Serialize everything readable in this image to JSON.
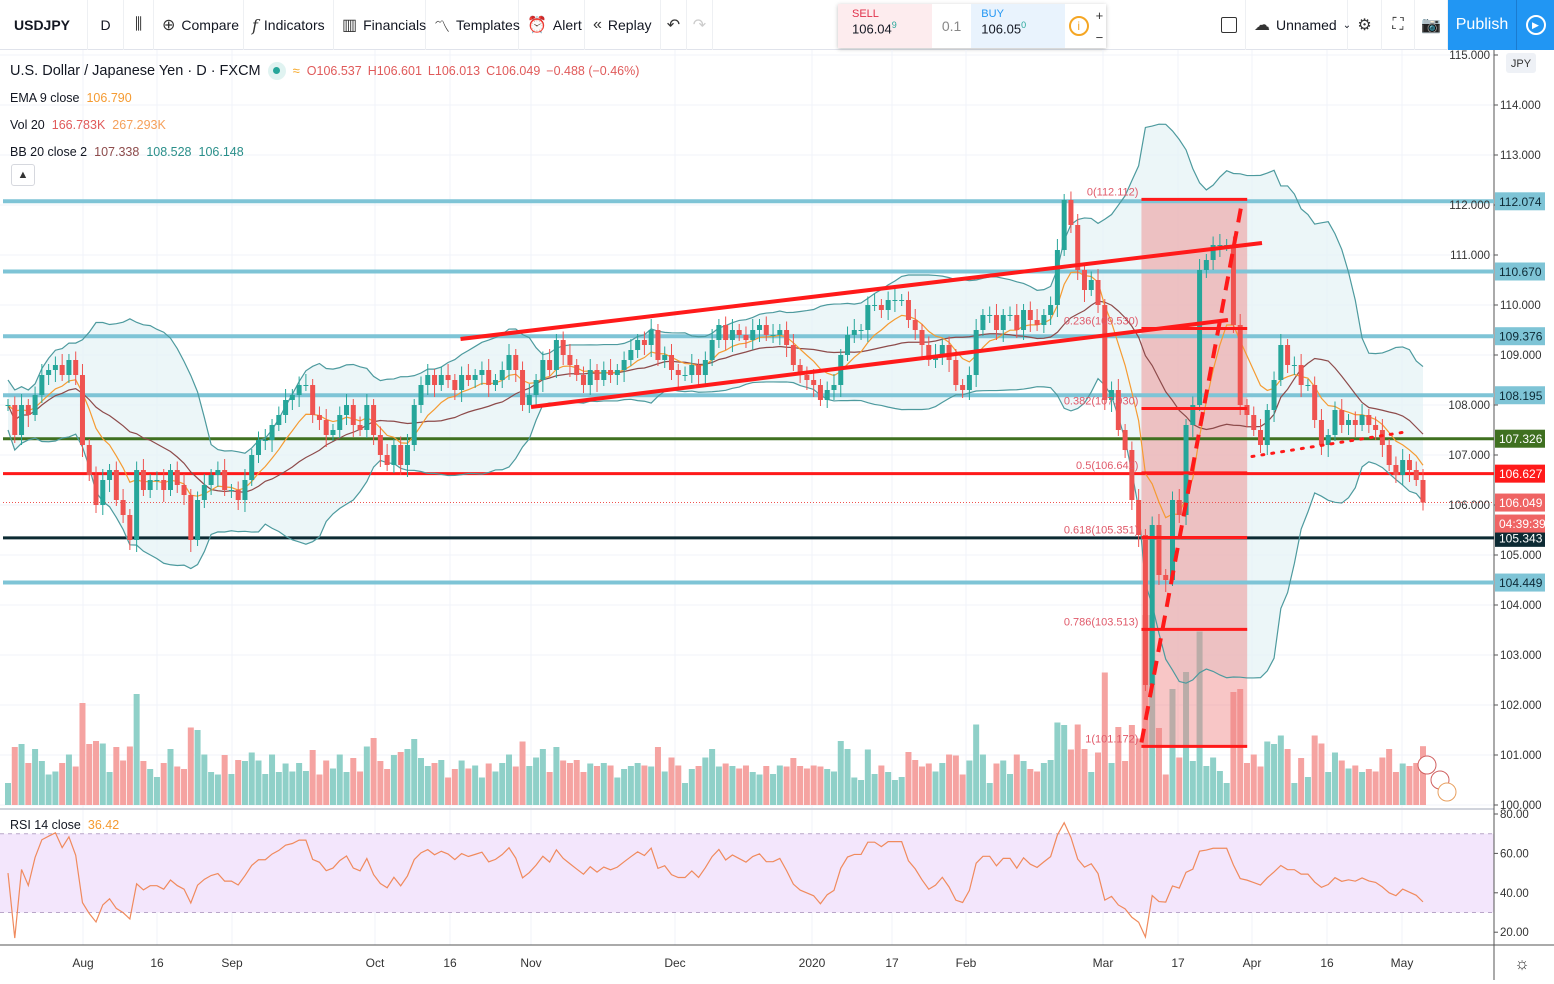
{
  "toolbar": {
    "symbol": "USDJPY",
    "interval": "D",
    "compare": "Compare",
    "indicators": "Indicators",
    "financials": "Financials",
    "templates": "Templates",
    "alert": "Alert",
    "replay": "Replay",
    "layout_name": "Unnamed",
    "publish": "Publish"
  },
  "trade": {
    "sell_label": "SELL",
    "sell_price": "106.04",
    "sell_sup": "9",
    "quantity": "0.1",
    "buy_label": "BUY",
    "buy_price": "106.05",
    "buy_sup": "0"
  },
  "legend": {
    "title": "U.S. Dollar / Japanese Yen · D · FXCM",
    "open": "O106.537",
    "high": "H106.601",
    "low": "L106.013",
    "close": "C106.049",
    "change": "−0.488 (−0.46%)",
    "ema_label": "EMA 9 close",
    "ema_value": "106.790",
    "vol_label": "Vol 20",
    "vol_value1": "166.783K",
    "vol_value2": "267.293K",
    "bb_label": "BB 20 close 2",
    "bb_basis": "107.338",
    "bb_upper": "108.528",
    "bb_lower": "106.148",
    "rsi_label": "RSI 14 close",
    "rsi_value": "36.42"
  },
  "price_axis": {
    "currency": "JPY",
    "ticks": [
      "115.000",
      "114.000",
      "113.000",
      "112.000",
      "111.000",
      "110.000",
      "109.000",
      "108.000",
      "107.000",
      "106.000",
      "105.000",
      "104.000",
      "103.000",
      "102.000",
      "101.000",
      "100.000"
    ],
    "countdown": "04:39:39"
  },
  "rsi_axis": {
    "ticks": [
      "80.00",
      "60.00",
      "40.00",
      "20.00"
    ]
  },
  "time_axis": {
    "ticks": [
      "Aug",
      "16",
      "Sep",
      "Oct",
      "16",
      "Nov",
      "Dec",
      "2020",
      "17",
      "Feb",
      "Mar",
      "17",
      "Apr",
      "16",
      "May"
    ]
  },
  "colors": {
    "up": "#26a69a",
    "down": "#ef5350",
    "ema": "#f59b32",
    "bb_basis": "#8d4b4b",
    "bb_band": "#4d9a9e",
    "accent": "#2196f3"
  },
  "horizontal_levels": [
    {
      "price": 112.074,
      "label": "112.074",
      "color": "#7ec4d6",
      "text": "#0d2a36"
    },
    {
      "price": 110.67,
      "label": "110.670",
      "color": "#7ec4d6",
      "text": "#0d2a36"
    },
    {
      "price": 109.376,
      "label": "109.376",
      "color": "#7ec4d6",
      "text": "#0d2a36"
    },
    {
      "price": 108.195,
      "label": "108.195",
      "color": "#7ec4d6",
      "text": "#0d2a36"
    },
    {
      "price": 107.326,
      "label": "107.326",
      "color": "#3f7020",
      "text": "#ffffff"
    },
    {
      "price": 106.627,
      "label": "106.627",
      "color": "#ff1a1a",
      "text": "#ffffff"
    },
    {
      "price": 105.343,
      "label": "105.343",
      "color": "#0c2a33",
      "text": "#ffffff"
    },
    {
      "price": 104.449,
      "label": "104.449",
      "color": "#7ec4d6",
      "text": "#0d2a36"
    }
  ],
  "last_price": {
    "price": 106.049,
    "label": "106.049",
    "color": "#ef6464"
  },
  "fibonacci": {
    "levels": [
      {
        "ratio": 0,
        "price": 112.112,
        "label": "0(112.112)"
      },
      {
        "ratio": 0.236,
        "price": 109.53,
        "label": "0.236(109.530)"
      },
      {
        "ratio": 0.382,
        "price": 107.93,
        "label": "0.382(107.930)"
      },
      {
        "ratio": 0.5,
        "price": 106.642,
        "label": "0.5(106.642)"
      },
      {
        "ratio": 0.618,
        "price": 105.351,
        "label": "0.618(105.351)"
      },
      {
        "ratio": 0.786,
        "price": 103.513,
        "label": "0.786(103.513)"
      },
      {
        "ratio": 1,
        "price": 101.172,
        "label": "1(101.172)"
      }
    ],
    "from_date": "2020-03-09",
    "to_date": "2020-03-31"
  },
  "trendlines": [
    {
      "name": "channel-upper",
      "from": {
        "date": "2019-10-18",
        "price": 109.32
      },
      "to": {
        "date": "2020-04-03",
        "price": 111.24
      },
      "style": "solid"
    },
    {
      "name": "channel-lower",
      "from": {
        "date": "2019-11-01",
        "price": 107.96
      },
      "to": {
        "date": "2020-03-27",
        "price": 109.7
      },
      "style": "solid"
    },
    {
      "name": "fib-trend",
      "from": {
        "date": "2020-03-09",
        "price": 101.25
      },
      "to": {
        "date": "2020-03-30",
        "price": 112.1
      },
      "style": "dashed"
    },
    {
      "name": "support-dotted",
      "from": {
        "date": "2020-04-01",
        "price": 106.97
      },
      "to": {
        "date": "2020-05-01",
        "price": 107.45
      },
      "style": "dotted"
    }
  ],
  "chart_data": {
    "type": "candlestick",
    "symbol": "USDJPY",
    "ylim": [
      100,
      115
    ],
    "rsi_ylim": [
      15,
      82
    ],
    "rsi_bands": [
      30,
      70
    ],
    "grid": true,
    "closes": [
      108.0,
      107.4,
      108.0,
      107.8,
      108.2,
      108.6,
      108.7,
      108.8,
      108.6,
      108.9,
      108.6,
      107.2,
      106.6,
      106.0,
      106.5,
      106.7,
      106.1,
      105.8,
      105.3,
      106.7,
      106.3,
      106.5,
      106.5,
      106.3,
      106.7,
      106.4,
      106.2,
      105.3,
      106.1,
      106.4,
      106.6,
      106.7,
      106.3,
      106.3,
      106.1,
      106.5,
      107.0,
      107.3,
      107.3,
      107.6,
      107.8,
      108.1,
      108.2,
      108.4,
      108.4,
      107.8,
      107.7,
      107.4,
      107.5,
      107.8,
      108.0,
      107.6,
      107.5,
      108.0,
      107.4,
      107.0,
      106.8,
      107.2,
      106.8,
      107.2,
      108.0,
      108.4,
      108.6,
      108.4,
      108.6,
      108.5,
      108.3,
      108.6,
      108.5,
      108.6,
      108.7,
      108.4,
      108.5,
      108.7,
      109.0,
      108.7,
      108.0,
      108.2,
      108.5,
      108.9,
      108.7,
      109.3,
      109.0,
      108.8,
      108.6,
      108.4,
      108.7,
      108.5,
      108.7,
      108.6,
      108.7,
      108.9,
      109.1,
      109.3,
      109.2,
      109.5,
      108.9,
      109.0,
      108.7,
      108.6,
      108.6,
      108.8,
      108.6,
      108.9,
      109.3,
      109.6,
      109.3,
      109.5,
      109.4,
      109.3,
      109.5,
      109.6,
      109.4,
      109.4,
      109.5,
      109.2,
      108.8,
      108.6,
      108.5,
      108.4,
      108.1,
      108.3,
      108.4,
      109.0,
      109.4,
      109.5,
      109.5,
      110.0,
      110.0,
      109.9,
      110.1,
      110.1,
      110.1,
      109.7,
      109.5,
      109.2,
      108.9,
      109.0,
      109.2,
      108.9,
      108.4,
      108.3,
      108.6,
      109.5,
      109.8,
      109.8,
      109.5,
      109.8,
      109.8,
      109.5,
      109.9,
      109.7,
      109.6,
      109.8,
      110.0,
      111.1,
      112.1,
      111.6,
      110.7,
      110.3,
      110.5,
      110.0,
      108.1,
      108.3,
      107.5,
      107.1,
      106.1,
      105.4,
      102.4,
      105.6,
      104.6,
      104.5,
      106.1,
      105.8,
      107.6,
      108.0,
      110.7,
      110.9,
      111.2,
      111.2,
      111.2,
      109.6,
      108.0,
      107.8,
      107.5,
      107.2,
      107.9,
      108.5,
      109.2,
      108.8,
      108.8,
      108.4,
      108.4,
      107.7,
      107.2,
      107.4,
      107.9,
      107.6,
      107.7,
      107.6,
      107.8,
      107.6,
      107.5,
      107.2,
      106.8,
      106.6,
      106.9,
      106.7,
      106.5,
      106.049
    ]
  }
}
